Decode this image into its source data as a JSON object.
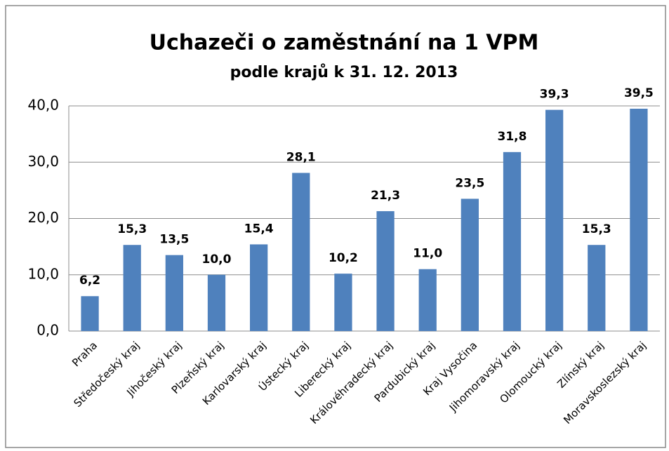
{
  "chart_data": {
    "type": "bar",
    "title": "Uchazeči o zaměstnání na 1 VPM",
    "subtitle": "podle krajů k 31. 12. 2013",
    "categories": [
      "Praha",
      "Středočeský kraj",
      "Jihočeský kraj",
      "Plzeňský kraj",
      "Karlovarský kraj",
      "Ústecký kraj",
      "Liberecký kraj",
      "Královéhradecký kraj",
      "Pardubický kraj",
      "Kraj Vysočina",
      "Jihomoravský kraj",
      "Olomoucký kraj",
      "Zlínský kraj",
      "Moravskoslezský kraj"
    ],
    "values": [
      6.2,
      15.3,
      13.5,
      10.0,
      15.4,
      28.1,
      10.2,
      21.3,
      11.0,
      23.5,
      31.8,
      39.3,
      15.3,
      39.5
    ],
    "value_labels": [
      "6,2",
      "15,3",
      "13,5",
      "10,0",
      "15,4",
      "28,1",
      "10,2",
      "21,3",
      "11,0",
      "23,5",
      "31,8",
      "39,3",
      "15,3",
      "39,5"
    ],
    "color": "#4f81bd",
    "ylim": [
      0,
      40
    ],
    "yticks": [
      {
        "value": 0,
        "label": "0,0"
      },
      {
        "value": 10,
        "label": "10,0"
      },
      {
        "value": 20,
        "label": "20,0"
      },
      {
        "value": 30,
        "label": "30,0"
      },
      {
        "value": 40,
        "label": "40,0"
      }
    ],
    "grid": true
  }
}
